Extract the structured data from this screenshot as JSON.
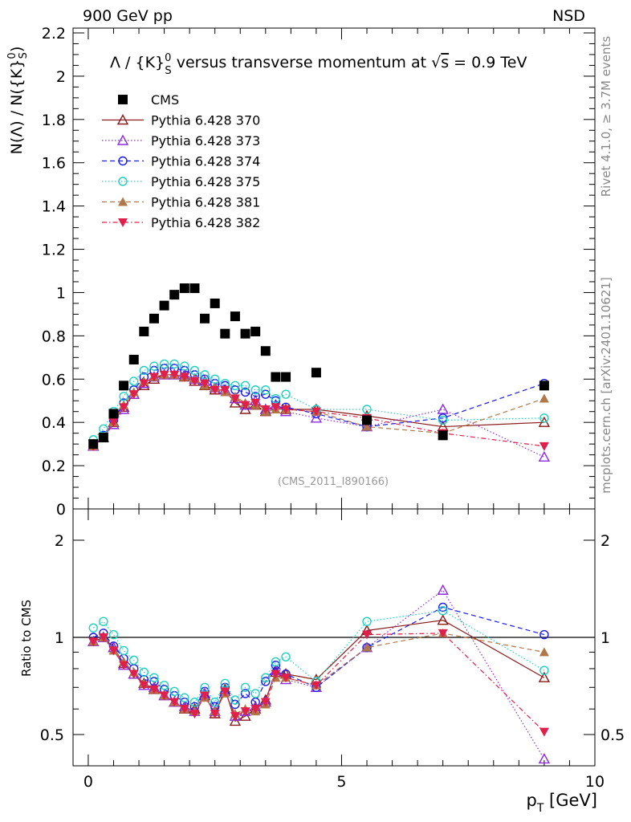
{
  "header": {
    "left": "900 GeV pp",
    "right": "NSD"
  },
  "side_labels": {
    "rivet": "Rivet 4.1.0, ≥ 3.7M events",
    "mcplots": "mcplots.cern.ch [arXiv:2401.10621]"
  },
  "plot": {
    "title_prefix": "Λ / {K}",
    "title_sup": "0",
    "title_sub": "S",
    "title_mid": " versus transverse momentum at ",
    "title_sqrt": "√",
    "title_s": "s",
    "title_suffix": " = 0.9 TeV",
    "ylabel_main_a": "N(Λ)  /  N({K}",
    "ylabel_main_sup": "0",
    "ylabel_main_sub": "S",
    "ylabel_main_b": ")",
    "ylabel_ratio": "Ratio to CMS",
    "xlabel_p": "p",
    "xlabel_sub": "T",
    "xlabel_unit": " [GeV]",
    "watermark": "(CMS_2011_I890166)"
  },
  "chart_data": [
    {
      "panel": "main",
      "type": "scatter",
      "xlim": [
        -0.3,
        10.0
      ],
      "ylim": [
        0,
        2.22
      ],
      "yticks": [
        0,
        0.2,
        0.4,
        0.6,
        0.8,
        1,
        1.2,
        1.4,
        1.6,
        1.8,
        2,
        2.2
      ],
      "ytick_labels": [
        "0",
        "0.2",
        "0.4",
        "0.6",
        "0.8",
        "1",
        "1.2",
        "1.4",
        "1.6",
        "1.8",
        "2",
        "2.2"
      ],
      "series": [
        {
          "name": "CMS",
          "label": "CMS",
          "color": "#000000",
          "marker": "filled-square",
          "line": "none",
          "x": [
            0.1,
            0.3,
            0.5,
            0.7,
            0.9,
            1.1,
            1.3,
            1.5,
            1.7,
            1.9,
            2.1,
            2.3,
            2.5,
            2.7,
            2.9,
            3.1,
            3.3,
            3.5,
            3.7,
            3.9,
            4.5,
            5.5,
            7.0,
            9.0
          ],
          "y": [
            0.3,
            0.33,
            0.44,
            0.57,
            0.69,
            0.82,
            0.88,
            0.94,
            0.99,
            1.02,
            1.02,
            0.88,
            0.95,
            0.81,
            0.89,
            0.81,
            0.82,
            0.73,
            0.61,
            0.61,
            0.63,
            0.41,
            0.34,
            0.57
          ]
        },
        {
          "name": "Pythia 6.428 370",
          "label": "Pythia 6.428 370",
          "color": "#8b1a1a",
          "marker": "open-triangle-up",
          "line": "solid",
          "x": [
            0.1,
            0.3,
            0.5,
            0.7,
            0.9,
            1.1,
            1.3,
            1.5,
            1.7,
            1.9,
            2.1,
            2.3,
            2.5,
            2.7,
            2.9,
            3.1,
            3.3,
            3.5,
            3.7,
            3.9,
            4.5,
            5.5,
            7.0,
            9.0
          ],
          "y": [
            0.29,
            0.33,
            0.4,
            0.47,
            0.53,
            0.57,
            0.6,
            0.62,
            0.62,
            0.61,
            0.59,
            0.57,
            0.55,
            0.55,
            0.49,
            0.46,
            0.48,
            0.45,
            0.48,
            0.46,
            0.46,
            0.43,
            0.38,
            0.4
          ]
        },
        {
          "name": "Pythia 6.428 373",
          "label": "Pythia 6.428 373",
          "color": "#8b2be2",
          "marker": "open-triangle-up",
          "line": "dotted",
          "x": [
            0.1,
            0.3,
            0.5,
            0.7,
            0.9,
            1.1,
            1.3,
            1.5,
            1.7,
            1.9,
            2.1,
            2.3,
            2.5,
            2.7,
            2.9,
            3.1,
            3.3,
            3.5,
            3.7,
            3.9,
            4.5,
            5.5,
            7.0,
            9.0
          ],
          "y": [
            0.29,
            0.33,
            0.39,
            0.46,
            0.53,
            0.58,
            0.61,
            0.62,
            0.62,
            0.62,
            0.6,
            0.59,
            0.56,
            0.55,
            0.51,
            0.48,
            0.5,
            0.46,
            0.48,
            0.45,
            0.42,
            0.38,
            0.46,
            0.24
          ]
        },
        {
          "name": "Pythia 6.428 374",
          "label": "Pythia 6.428 374",
          "color": "#1a1aee",
          "marker": "open-circle",
          "line": "dashed",
          "x": [
            0.1,
            0.3,
            0.5,
            0.7,
            0.9,
            1.1,
            1.3,
            1.5,
            1.7,
            1.9,
            2.1,
            2.3,
            2.5,
            2.7,
            2.9,
            3.1,
            3.3,
            3.5,
            3.7,
            3.9,
            4.5,
            5.5,
            7.0,
            9.0
          ],
          "y": [
            0.3,
            0.34,
            0.41,
            0.49,
            0.55,
            0.61,
            0.64,
            0.65,
            0.65,
            0.64,
            0.62,
            0.6,
            0.58,
            0.57,
            0.55,
            0.54,
            0.52,
            0.53,
            0.5,
            0.47,
            0.44,
            0.38,
            0.42,
            0.58
          ]
        },
        {
          "name": "Pythia 6.428 375",
          "label": "Pythia 6.428 375",
          "color": "#20d0c0",
          "marker": "open-circle",
          "line": "dotted",
          "x": [
            0.1,
            0.3,
            0.5,
            0.7,
            0.9,
            1.1,
            1.3,
            1.5,
            1.7,
            1.9,
            2.1,
            2.3,
            2.5,
            2.7,
            2.9,
            3.1,
            3.3,
            3.5,
            3.7,
            3.9,
            4.5,
            5.5,
            7.0,
            9.0
          ],
          "y": [
            0.32,
            0.37,
            0.45,
            0.52,
            0.59,
            0.64,
            0.66,
            0.67,
            0.67,
            0.66,
            0.64,
            0.62,
            0.6,
            0.58,
            0.57,
            0.57,
            0.55,
            0.55,
            0.51,
            0.53,
            0.46,
            0.46,
            0.41,
            0.42
          ]
        },
        {
          "name": "Pythia 6.428 381",
          "label": "Pythia 6.428 381",
          "color": "#b07848",
          "marker": "filled-triangle-up",
          "line": "dashed",
          "x": [
            0.1,
            0.3,
            0.5,
            0.7,
            0.9,
            1.1,
            1.3,
            1.5,
            1.7,
            1.9,
            2.1,
            2.3,
            2.5,
            2.7,
            2.9,
            3.1,
            3.3,
            3.5,
            3.7,
            3.9,
            4.5,
            5.5,
            7.0,
            9.0
          ],
          "y": [
            0.29,
            0.33,
            0.4,
            0.48,
            0.54,
            0.59,
            0.61,
            0.62,
            0.62,
            0.61,
            0.6,
            0.57,
            0.56,
            0.54,
            0.52,
            0.49,
            0.48,
            0.45,
            0.46,
            0.46,
            0.45,
            0.38,
            0.35,
            0.51
          ]
        },
        {
          "name": "Pythia 6.428 382",
          "label": "Pythia 6.428 382",
          "color": "#e0204a",
          "marker": "filled-triangle-down",
          "line": "dashdot",
          "x": [
            0.1,
            0.3,
            0.5,
            0.7,
            0.9,
            1.1,
            1.3,
            1.5,
            1.7,
            1.9,
            2.1,
            2.3,
            2.5,
            2.7,
            2.9,
            3.1,
            3.3,
            3.5,
            3.7,
            3.9,
            4.5,
            5.5,
            7.0,
            9.0
          ],
          "y": [
            0.29,
            0.33,
            0.4,
            0.47,
            0.53,
            0.58,
            0.61,
            0.62,
            0.62,
            0.61,
            0.59,
            0.58,
            0.55,
            0.55,
            0.51,
            0.48,
            0.49,
            0.46,
            0.47,
            0.46,
            0.45,
            0.42,
            0.35,
            0.29
          ]
        }
      ]
    },
    {
      "panel": "ratio",
      "type": "scatter",
      "xlim": [
        -0.3,
        10.0
      ],
      "ylim": [
        0.4,
        2.5
      ],
      "yscale": "log",
      "yticks": [
        0.5,
        1,
        2
      ],
      "ytick_labels": [
        "0.5",
        "1",
        "2"
      ],
      "xticks": [
        0,
        5,
        10
      ],
      "xtick_labels": [
        "0",
        "5",
        "10"
      ],
      "reference_line": 1,
      "series": [
        {
          "name": "Pythia 6.428 370",
          "y": [
            0.97,
            1.0,
            0.93,
            0.83,
            0.77,
            0.72,
            0.69,
            0.66,
            0.63,
            0.6,
            0.6,
            0.66,
            0.58,
            0.69,
            0.55,
            0.57,
            0.6,
            0.64,
            0.78,
            0.77,
            0.74,
            1.05,
            1.13,
            0.75
          ]
        },
        {
          "name": "Pythia 6.428 373",
          "y": [
            0.97,
            1.0,
            0.93,
            0.82,
            0.77,
            0.71,
            0.7,
            0.66,
            0.63,
            0.61,
            0.59,
            0.67,
            0.59,
            0.68,
            0.57,
            0.59,
            0.61,
            0.63,
            0.79,
            0.74,
            0.7,
            0.93,
            1.4,
            0.42
          ]
        },
        {
          "name": "Pythia 6.428 374",
          "y": [
            1.0,
            1.03,
            0.94,
            0.86,
            0.8,
            0.74,
            0.73,
            0.69,
            0.66,
            0.63,
            0.61,
            0.68,
            0.61,
            0.7,
            0.62,
            0.67,
            0.63,
            0.73,
            0.82,
            0.77,
            0.7,
            0.93,
            1.24,
            1.02
          ]
        },
        {
          "name": "Pythia 6.428 375",
          "y": [
            1.07,
            1.12,
            1.02,
            0.91,
            0.85,
            0.78,
            0.75,
            0.71,
            0.68,
            0.65,
            0.63,
            0.7,
            0.63,
            0.72,
            0.64,
            0.7,
            0.67,
            0.75,
            0.84,
            0.87,
            0.73,
            1.12,
            1.21,
            0.79
          ]
        },
        {
          "name": "Pythia 6.428 381",
          "y": [
            0.97,
            1.0,
            0.91,
            0.84,
            0.78,
            0.72,
            0.69,
            0.66,
            0.63,
            0.6,
            0.59,
            0.65,
            0.59,
            0.67,
            0.58,
            0.6,
            0.59,
            0.62,
            0.75,
            0.75,
            0.71,
            0.93,
            1.03,
            0.9
          ]
        },
        {
          "name": "Pythia 6.428 382",
          "y": [
            0.97,
            1.0,
            0.91,
            0.82,
            0.77,
            0.71,
            0.69,
            0.66,
            0.63,
            0.6,
            0.58,
            0.66,
            0.58,
            0.68,
            0.57,
            0.59,
            0.6,
            0.63,
            0.77,
            0.75,
            0.71,
            1.02,
            1.03,
            0.51
          ]
        }
      ]
    }
  ]
}
